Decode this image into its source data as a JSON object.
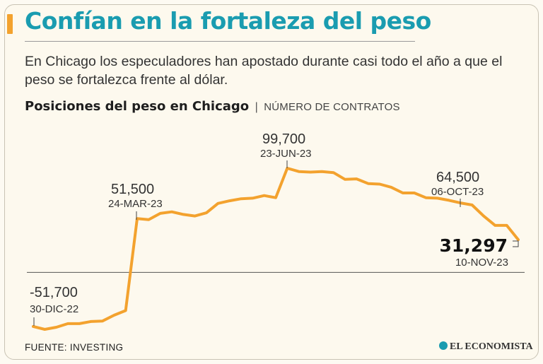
{
  "header": {
    "title": "Confían en la fortaleza del peso",
    "subtitle": "En Chicago los especuladores han apostado durante casi todo el año a que el peso se fortalezca frente al dólar."
  },
  "chart_heading": {
    "title": "Posiciones  del peso en Chicago",
    "separator": "|",
    "unit": "NÚMERO DE CONTRATOS"
  },
  "footer": {
    "source": "FUENTE: INVESTING",
    "brand": "EL ECONOMISTA"
  },
  "colors": {
    "line": "#f3a22e",
    "accent": "#f3a22e",
    "title": "#1a9cb0",
    "axis": "#555555"
  },
  "chart_data": {
    "type": "line",
    "title": "Posiciones  del peso en Chicago",
    "ylabel": "NÚMERO DE CONTRATOS",
    "xlabel": "",
    "ylim": [
      -60000,
      110000
    ],
    "zero_line": true,
    "series": [
      {
        "name": "Posiciones del peso",
        "values": [
          -51700,
          -54500,
          -52500,
          -49000,
          -49000,
          -47000,
          -46500,
          -41000,
          -36500,
          51500,
          50500,
          56500,
          58000,
          55500,
          54000,
          57000,
          66000,
          68500,
          70500,
          71000,
          73500,
          71500,
          99700,
          96500,
          96000,
          96500,
          95500,
          89000,
          89500,
          85000,
          84500,
          81500,
          76000,
          76000,
          71500,
          71000,
          69000,
          66500,
          64500,
          54000,
          45000,
          45000,
          31297
        ]
      }
    ],
    "annotations": [
      {
        "index": 0,
        "value": "-51,700",
        "date": "30-DIC-22"
      },
      {
        "index": 9,
        "value": "51,500",
        "date": "24-MAR-23"
      },
      {
        "index": 22,
        "value": "99,700",
        "date": "23-JUN-23"
      },
      {
        "index": 38,
        "value": "64,500",
        "date": "06-OCT-23"
      },
      {
        "index": 42,
        "value": "31,297",
        "date": "10-NOV-23"
      }
    ]
  }
}
